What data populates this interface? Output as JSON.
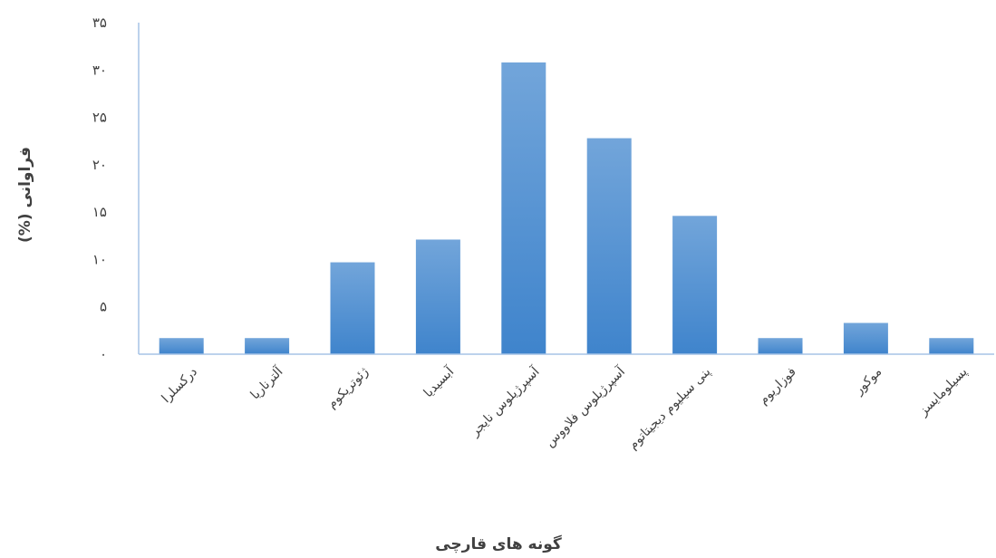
{
  "chart_data": {
    "type": "bar",
    "title": "",
    "xlabel": "گونه های قارچی",
    "ylabel": "فراوانی (%)",
    "ylim": [
      0,
      35
    ],
    "yticks": [
      0,
      5,
      10,
      15,
      20,
      25,
      30,
      35
    ],
    "ytick_labels": [
      "۰",
      "۵",
      "۱۰",
      "۱۵",
      "۲۰",
      "۲۵",
      "۳۰",
      "۳۵"
    ],
    "categories": [
      "درکسلرا",
      "آلترناریا",
      "ژئوتریکوم",
      "آبسیدیا",
      "آسپرژیلوس نایجر",
      "آسپرژیلوس فلاووس",
      "پنی سیلیوم دیجیتاتوم",
      "فوزاریوم",
      "موکور",
      "پسیلومایسز"
    ],
    "values": [
      1.7,
      1.7,
      9.7,
      12.1,
      30.8,
      22.8,
      14.6,
      1.7,
      3.3,
      1.7
    ],
    "grid": false,
    "legend": "none",
    "colors": {
      "bar_top": "#72a5da",
      "bar_bottom": "#3f84cc",
      "axis": "#a6c3e6",
      "text": "#404040"
    }
  }
}
